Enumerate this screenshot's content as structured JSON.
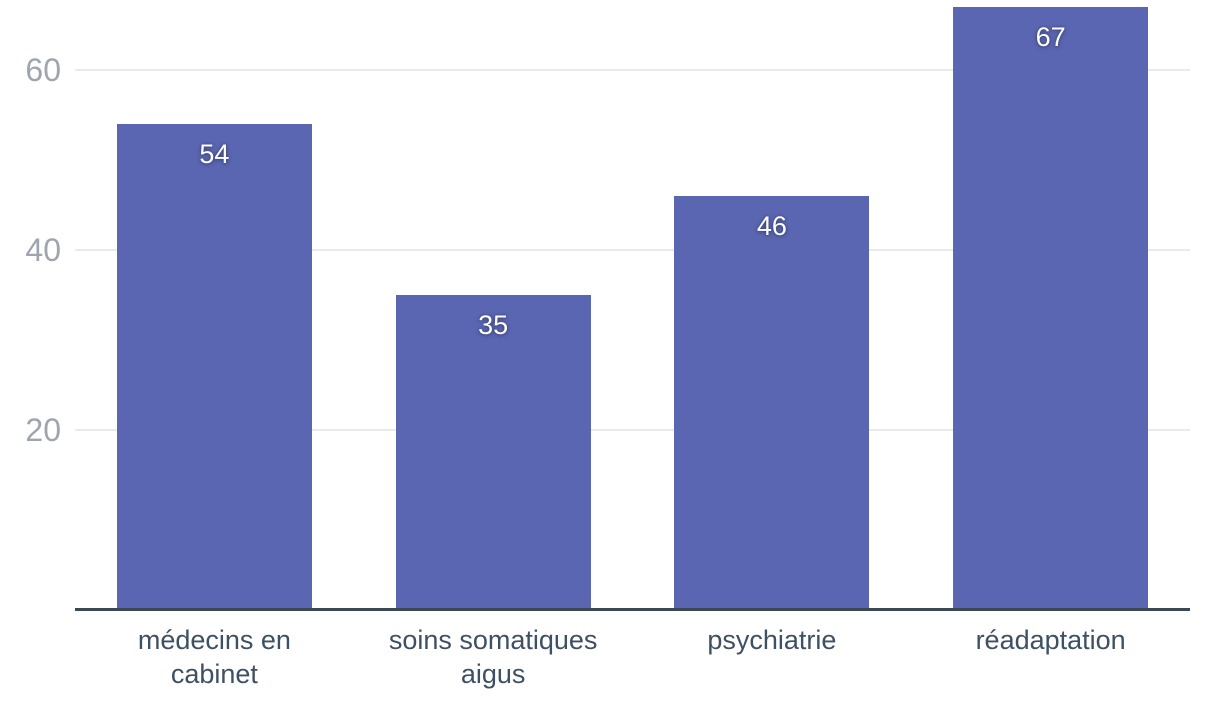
{
  "chart_data": {
    "type": "bar",
    "categories": [
      "médecins en cabinet",
      "soins somatiques aigus",
      "psychiatrie",
      "réadaptation"
    ],
    "values": [
      54,
      35,
      46,
      67
    ],
    "value_labels": [
      "54",
      "35",
      "46",
      "67"
    ],
    "title": "",
    "xlabel": "",
    "ylabel": "",
    "ylim": [
      0,
      67.8
    ],
    "yticks": [
      20,
      40,
      60
    ],
    "grid": true,
    "legend": false,
    "orientation": "vertical",
    "colors": {
      "bar": "#5a66b1",
      "grid_line": "#e9eaec",
      "axis_line": "#3d4855",
      "ytick_text": "#9fa5af",
      "xtick_text": "#3e5063",
      "value_label_text": "#ffffff",
      "background": "#ffffff"
    }
  }
}
